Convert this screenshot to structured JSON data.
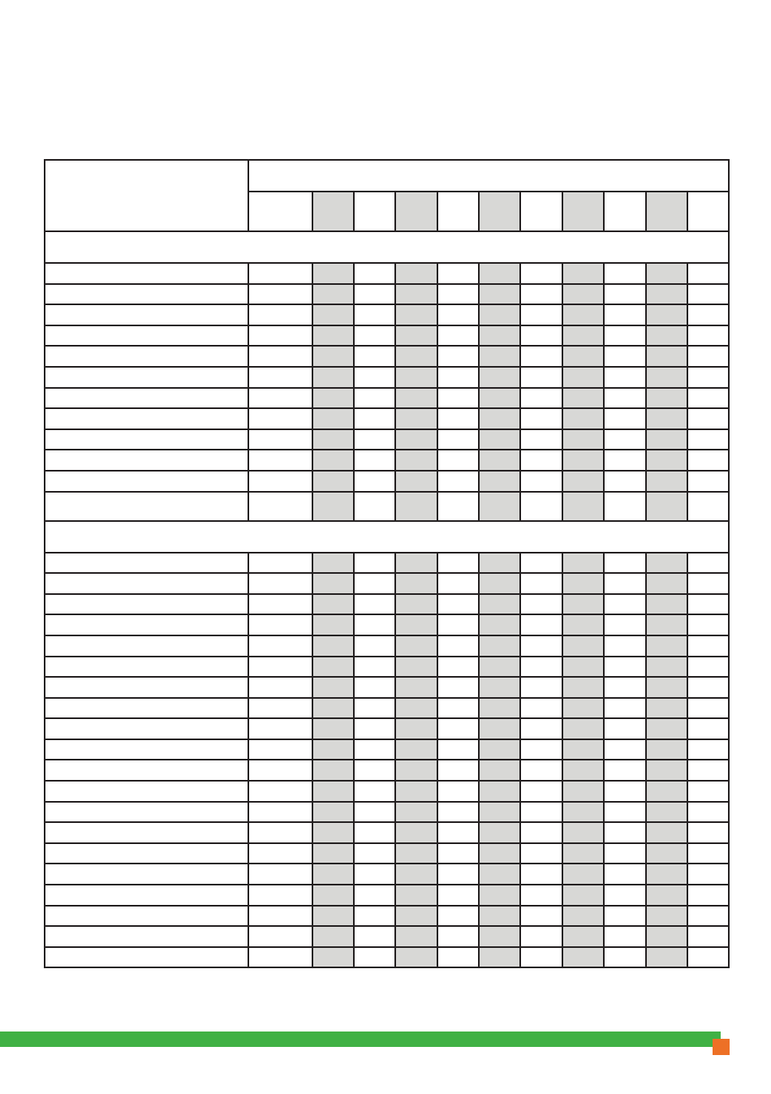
{
  "colors": {
    "border": "#231f20",
    "shaded_column": "#d8d8d6",
    "footer_bar": "#40b144",
    "footer_accent": "#ed7026"
  },
  "table": {
    "header": {
      "row_label": "",
      "group_label": "",
      "columns": [
        "",
        "",
        "",
        "",
        "",
        "",
        "",
        "",
        "",
        "",
        ""
      ]
    },
    "sections": [
      {
        "title": "",
        "rows": [
          "",
          "",
          "",
          "",
          "",
          "",
          "",
          "",
          "",
          "",
          "",
          ""
        ]
      },
      {
        "title": "",
        "rows": [
          "",
          "",
          "",
          "",
          "",
          "",
          "",
          "",
          "",
          "",
          "",
          "",
          "",
          "",
          "",
          "",
          "",
          "",
          "",
          ""
        ]
      }
    ]
  }
}
